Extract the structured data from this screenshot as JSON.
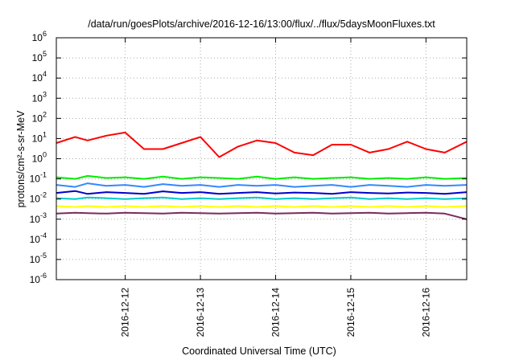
{
  "chart_data": {
    "type": "line",
    "title": "/data/run/goesPlots/archive/2016-12-16/13:00/flux/../flux/5daysMoonFluxes.txt",
    "xlabel": "Coordinated Universal Time (UTC)",
    "ylabel": "protons/cm²-s-sr-MeV",
    "yscale": "log",
    "ylim": [
      1e-06,
      1000000.0
    ],
    "y_ticks": [
      {
        "base": "10",
        "exp": "-6",
        "value": 1e-06
      },
      {
        "base": "10",
        "exp": "-5",
        "value": 1e-05
      },
      {
        "base": "10",
        "exp": "-4",
        "value": 0.0001
      },
      {
        "base": "10",
        "exp": "-3",
        "value": 0.001
      },
      {
        "base": "10",
        "exp": "-2",
        "value": 0.01
      },
      {
        "base": "10",
        "exp": "-1",
        "value": 0.1
      },
      {
        "base": "10",
        "exp": "0",
        "value": 1
      },
      {
        "base": "10",
        "exp": "1",
        "value": 10
      },
      {
        "base": "10",
        "exp": "2",
        "value": 100
      },
      {
        "base": "10",
        "exp": "3",
        "value": 1000
      },
      {
        "base": "10",
        "exp": "4",
        "value": 10000
      },
      {
        "base": "10",
        "exp": "5",
        "value": 100000
      },
      {
        "base": "10",
        "exp": "6",
        "value": 1000000
      }
    ],
    "x_range": [
      "2016-12-11 02:00",
      "2016-12-16 13:00"
    ],
    "x_ticks": [
      "2016-12-12",
      "2016-12-13",
      "2016-12-14",
      "2016-12-15",
      "2016-12-16"
    ],
    "grid": true,
    "legend": "none",
    "x": [
      "2016-12-11 02:00",
      "2016-12-11 08:00",
      "2016-12-11 12:00",
      "2016-12-11 18:00",
      "2016-12-12 00:00",
      "2016-12-12 06:00",
      "2016-12-12 12:00",
      "2016-12-12 18:00",
      "2016-12-13 00:00",
      "2016-12-13 06:00",
      "2016-12-13 12:00",
      "2016-12-13 18:00",
      "2016-12-14 00:00",
      "2016-12-14 06:00",
      "2016-12-14 12:00",
      "2016-12-14 18:00",
      "2016-12-15 00:00",
      "2016-12-15 06:00",
      "2016-12-15 12:00",
      "2016-12-15 18:00",
      "2016-12-16 00:00",
      "2016-12-16 06:00",
      "2016-12-16 13:00"
    ],
    "series": [
      {
        "color": "#ff0000",
        "values": [
          6,
          12,
          8,
          14,
          20,
          3,
          3,
          6,
          12,
          1.2,
          4,
          8,
          6,
          2,
          1.5,
          5,
          5,
          2,
          3,
          7,
          3,
          2,
          7
        ]
      },
      {
        "color": "#00ee00",
        "values": [
          0.12,
          0.1,
          0.14,
          0.11,
          0.12,
          0.1,
          0.13,
          0.1,
          0.12,
          0.11,
          0.1,
          0.13,
          0.1,
          0.12,
          0.1,
          0.11,
          0.12,
          0.1,
          0.11,
          0.1,
          0.12,
          0.1,
          0.11
        ]
      },
      {
        "color": "#3388ff",
        "values": [
          0.05,
          0.04,
          0.06,
          0.045,
          0.05,
          0.04,
          0.055,
          0.045,
          0.05,
          0.04,
          0.05,
          0.045,
          0.05,
          0.04,
          0.045,
          0.05,
          0.04,
          0.05,
          0.045,
          0.04,
          0.05,
          0.045,
          0.05
        ]
      },
      {
        "color": "#0000cc",
        "values": [
          0.02,
          0.025,
          0.018,
          0.022,
          0.02,
          0.018,
          0.024,
          0.02,
          0.022,
          0.018,
          0.02,
          0.022,
          0.019,
          0.021,
          0.02,
          0.018,
          0.022,
          0.02,
          0.019,
          0.021,
          0.02,
          0.018,
          0.022
        ]
      },
      {
        "color": "#00cccc",
        "values": [
          0.011,
          0.01,
          0.012,
          0.011,
          0.01,
          0.011,
          0.012,
          0.01,
          0.011,
          0.01,
          0.011,
          0.012,
          0.01,
          0.011,
          0.01,
          0.011,
          0.012,
          0.01,
          0.011,
          0.01,
          0.011,
          0.01,
          0.011
        ]
      },
      {
        "color": "#ffff00",
        "values": [
          0.0045,
          0.004,
          0.0045,
          0.004,
          0.0045,
          0.004,
          0.0045,
          0.004,
          0.0045,
          0.004,
          0.0045,
          0.004,
          0.0045,
          0.004,
          0.0045,
          0.004,
          0.0045,
          0.004,
          0.0045,
          0.004,
          0.0045,
          0.004,
          0.0045
        ]
      },
      {
        "color": "#7b2a5f",
        "values": [
          0.0019,
          0.0021,
          0.002,
          0.0019,
          0.0021,
          0.002,
          0.0019,
          0.0021,
          0.002,
          0.0019,
          0.002,
          0.0021,
          0.0019,
          0.002,
          0.0021,
          0.0019,
          0.002,
          0.0021,
          0.0019,
          0.002,
          0.0021,
          0.0019,
          0.001
        ]
      }
    ]
  }
}
